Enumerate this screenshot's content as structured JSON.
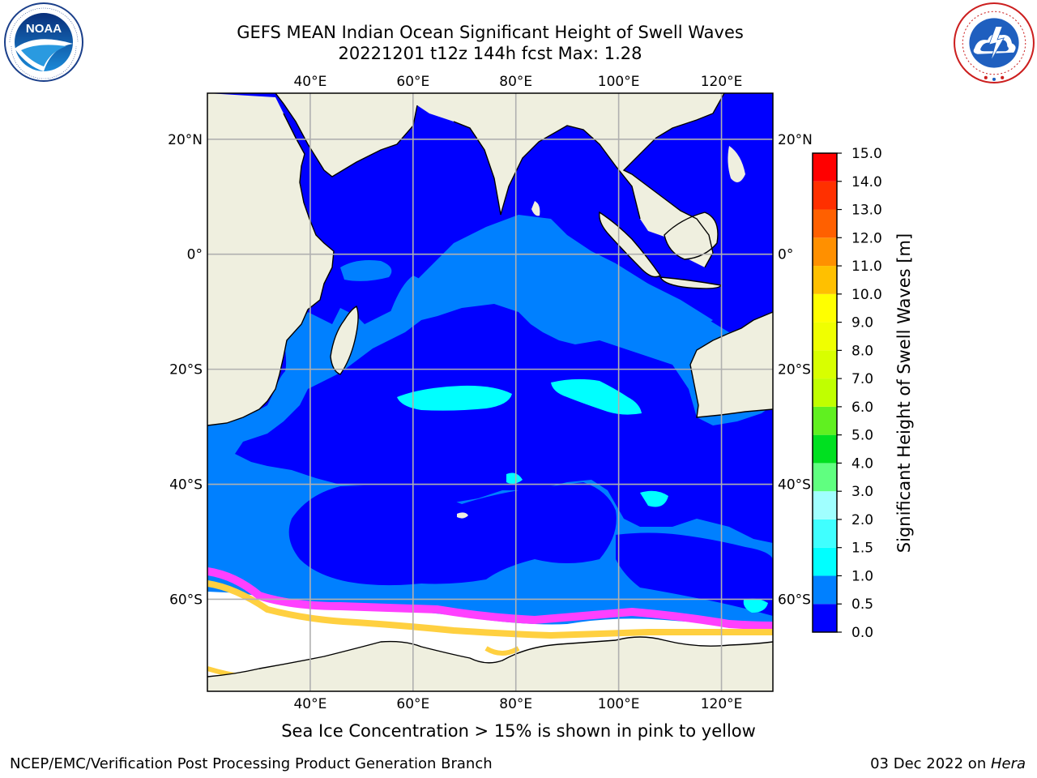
{
  "header": {
    "title_line1": "GEFS MEAN Indian Ocean Significant Height of Swell Waves",
    "title_line2": "20221201 t12z 144h fcst   Max: 1.28"
  },
  "logos": {
    "left": {
      "icon": "noaa-logo-icon",
      "text": "NOAA"
    },
    "right": {
      "icon": "nws-logo-icon"
    }
  },
  "map": {
    "lon_ticks": [
      {
        "value": 40,
        "label": "40°E"
      },
      {
        "value": 60,
        "label": "60°E"
      },
      {
        "value": 80,
        "label": "80°E"
      },
      {
        "value": 100,
        "label": "100°E"
      },
      {
        "value": 120,
        "label": "120°E"
      }
    ],
    "lat_ticks": [
      {
        "value": 20,
        "label": "20°N"
      },
      {
        "value": 0,
        "label": "0°"
      },
      {
        "value": -20,
        "label": "20°S"
      },
      {
        "value": -40,
        "label": "40°S"
      },
      {
        "value": -60,
        "label": "60°S"
      }
    ],
    "lon_range": [
      20,
      130
    ],
    "lat_range": [
      -76,
      28
    ],
    "colors": {
      "land": "#efefdf",
      "coastline": "#000000",
      "grid": "#b0b0b0",
      "swell_0_05": "#0000ff",
      "swell_05_10": "#0080ff",
      "swell_10_15": "#00ffff",
      "sea_ice": "#ffffff",
      "ice_edge_pink": "#ff40ff",
      "ice_edge_yellow": "#ffd040"
    }
  },
  "colorbar": {
    "label": "Significant Height of Swell Waves [m]",
    "min": 0,
    "max": 15,
    "bins": [
      {
        "from": 0.0,
        "to": 0.5,
        "color": "#0000ff"
      },
      {
        "from": 0.5,
        "to": 1.0,
        "color": "#0080ff"
      },
      {
        "from": 1.0,
        "to": 1.5,
        "color": "#00ffff"
      },
      {
        "from": 1.5,
        "to": 2.0,
        "color": "#40ffff"
      },
      {
        "from": 2.0,
        "to": 3.0,
        "color": "#a0ffff"
      },
      {
        "from": 3.0,
        "to": 4.0,
        "color": "#60ff80"
      },
      {
        "from": 4.0,
        "to": 5.0,
        "color": "#00e020"
      },
      {
        "from": 5.0,
        "to": 6.0,
        "color": "#60f020"
      },
      {
        "from": 6.0,
        "to": 7.0,
        "color": "#c0ff00"
      },
      {
        "from": 7.0,
        "to": 8.0,
        "color": "#d8ff00"
      },
      {
        "from": 8.0,
        "to": 9.0,
        "color": "#f0ff00"
      },
      {
        "from": 9.0,
        "to": 10.0,
        "color": "#ffff00"
      },
      {
        "from": 10.0,
        "to": 11.0,
        "color": "#ffc000"
      },
      {
        "from": 11.0,
        "to": 12.0,
        "color": "#ff9000"
      },
      {
        "from": 12.0,
        "to": 13.0,
        "color": "#ff6000"
      },
      {
        "from": 13.0,
        "to": 14.0,
        "color": "#ff3000"
      },
      {
        "from": 14.0,
        "to": 15.0,
        "color": "#ff0000"
      }
    ],
    "tick_labels": [
      "0.0",
      "0.5",
      "1.0",
      "1.5",
      "2.0",
      "3.0",
      "4.0",
      "5.0",
      "6.0",
      "7.0",
      "8.0",
      "9.0",
      "10.0",
      "11.0",
      "12.0",
      "13.0",
      "14.0",
      "15.0"
    ]
  },
  "caption": "Sea Ice Concentration > 15% is shown in pink to yellow",
  "footer": {
    "left": "NCEP/EMC/Verification Post Processing Product Generation Branch",
    "right_prefix": "03 Dec 2022 on ",
    "right_host": "Hera"
  }
}
